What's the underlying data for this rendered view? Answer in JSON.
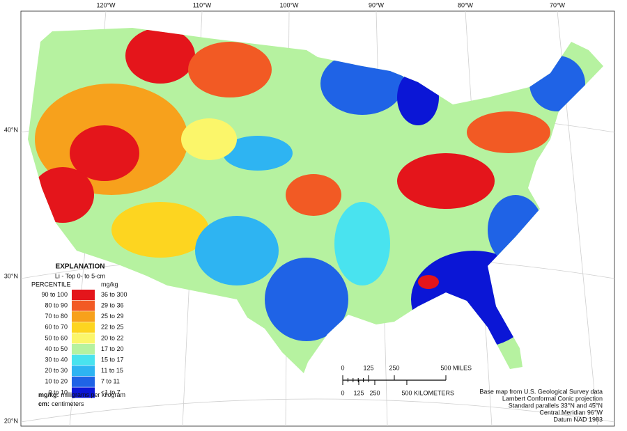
{
  "map": {
    "longitude_labels": [
      "120°W",
      "110°W",
      "100°W",
      "90°W",
      "80°W",
      "70°W"
    ],
    "latitude_labels": [
      "40°N",
      "30°N",
      "20°N"
    ]
  },
  "legend": {
    "title": "EXPLANATION",
    "subtitle": "Li - Top 0- to 5-cm",
    "percentile_header": "PERCENTILE",
    "value_header": "mg/kg",
    "rows": [
      {
        "percentile": "90 to 100",
        "range": "36 to 300",
        "color": "#e4151b"
      },
      {
        "percentile": "80 to 90",
        "range": "29 to 36",
        "color": "#f25a24"
      },
      {
        "percentile": "70 to 80",
        "range": "25 to 29",
        "color": "#f7a11c"
      },
      {
        "percentile": "60 to 70",
        "range": "22 to 25",
        "color": "#fdd520"
      },
      {
        "percentile": "50 to 60",
        "range": "20 to 22",
        "color": "#fbf66a"
      },
      {
        "percentile": "40 to 50",
        "range": "17 to 20",
        "color": "#b6f2a0"
      },
      {
        "percentile": "30 to 40",
        "range": "15 to 17",
        "color": "#49e3ef"
      },
      {
        "percentile": "20 to 30",
        "range": "11 to 15",
        "color": "#2eb4f2"
      },
      {
        "percentile": "10 to 20",
        "range": "7 to 11",
        "color": "#1f63e6"
      },
      {
        "percentile": "0 to 10",
        "range": "<1 to 7",
        "color": "#0b16d6"
      }
    ]
  },
  "footnotes": [
    {
      "term": "mg/kg:",
      "definition": "milligrams per kilogram"
    },
    {
      "term": "cm:",
      "definition": "centimeters"
    }
  ],
  "scale_bar": {
    "miles": {
      "ticks": [
        0,
        125,
        250,
        500
      ],
      "unit": "MILES"
    },
    "kilometers": {
      "ticks": [
        0,
        125,
        250,
        500
      ],
      "unit": "KILOMETERS"
    }
  },
  "credits": [
    "Base map from U.S. Geological Survey data",
    "Lambert Conformal Conic projection",
    "Standard parallels 33°N and 45°N",
    "Central Meridian 96°W",
    "Datum NAD 1983"
  ]
}
